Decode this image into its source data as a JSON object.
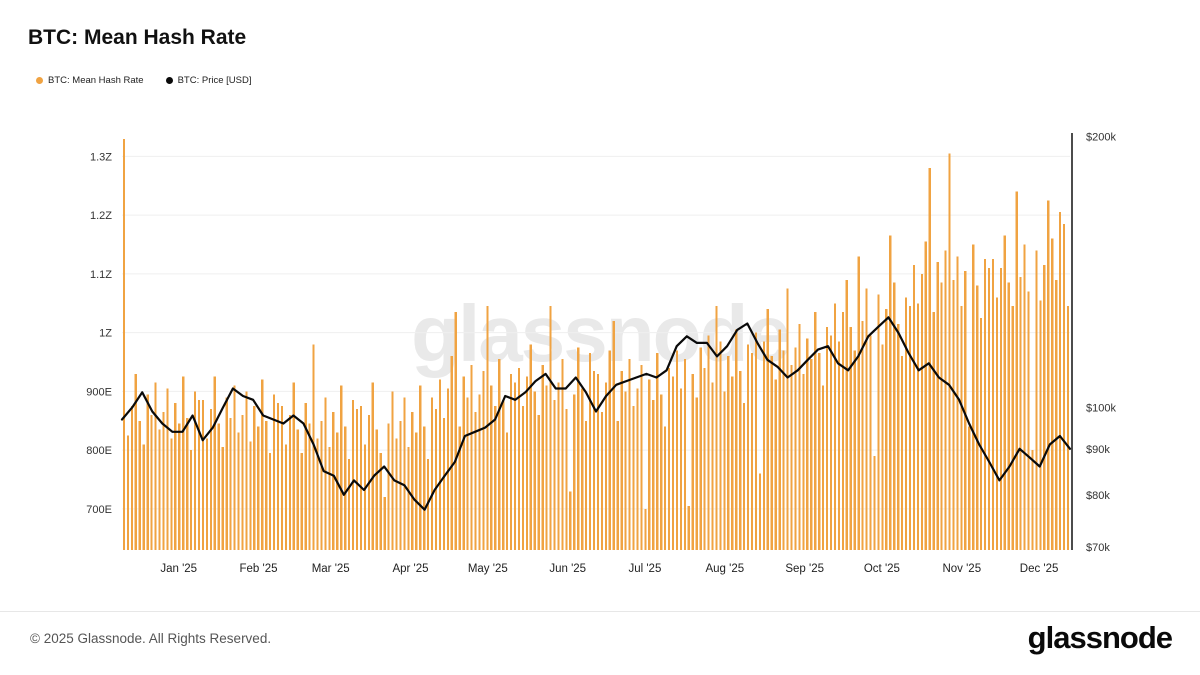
{
  "page": {
    "title": "BTC: Mean Hash Rate",
    "watermark": "glassnode",
    "footer_copyright": "© 2025 Glassnode. All Rights Reserved.",
    "footer_logo": "glassnode"
  },
  "legend": [
    {
      "label": "BTC: Mean Hash Rate",
      "color": "#f0a342"
    },
    {
      "label": "BTC: Price [USD]",
      "color": "#0a0a0a"
    }
  ],
  "chart_data": {
    "type": "bar+line",
    "title": "BTC: Mean Hash Rate",
    "x_start": "2024-12-10",
    "x_end": "2025-12-13",
    "x_tick_labels": [
      "Jan '25",
      "Feb '25",
      "Mar '25",
      "Apr '25",
      "May '25",
      "Jun '25",
      "Jul '25",
      "Aug '25",
      "Sep '25",
      "Oct '25",
      "Nov '25",
      "Dec '25"
    ],
    "left_axis": {
      "name": "Mean Hash Rate",
      "unit": "hashes/s",
      "scale": "linear",
      "ticks": [
        {
          "value": 700,
          "label": "700E"
        },
        {
          "value": 800,
          "label": "800E"
        },
        {
          "value": 900,
          "label": "900E"
        },
        {
          "value": 1000,
          "label": "1Z"
        },
        {
          "value": 1100,
          "label": "1.1Z"
        },
        {
          "value": 1200,
          "label": "1.2Z"
        },
        {
          "value": 1300,
          "label": "1.3Z"
        }
      ],
      "range": [
        630,
        1360
      ]
    },
    "right_axis": {
      "name": "Price",
      "unit": "USD",
      "scale": "log",
      "ticks": [
        {
          "value": 70,
          "label": "$70k"
        },
        {
          "value": 80,
          "label": "$80k"
        },
        {
          "value": 90,
          "label": "$90k"
        },
        {
          "value": 100,
          "label": "$100k"
        },
        {
          "value": 200,
          "label": "$200k"
        }
      ],
      "range": [
        70,
        205
      ]
    },
    "series": [
      {
        "name": "BTC: Mean Hash Rate",
        "type": "bar",
        "unit": "EH/s",
        "color": "#f0a342",
        "values": [
          1330,
          825,
          875,
          930,
          850,
          810,
          895,
          860,
          915,
          835,
          865,
          905,
          820,
          880,
          845,
          925,
          855,
          800,
          900,
          885,
          885,
          820,
          870,
          925,
          845,
          805,
          890,
          855,
          910,
          830,
          860,
          900,
          815,
          875,
          840,
          920,
          850,
          795,
          895,
          880,
          875,
          810,
          860,
          915,
          835,
          795,
          880,
          845,
          980,
          820,
          850,
          890,
          805,
          865,
          830,
          910,
          840,
          785,
          885,
          870,
          875,
          810,
          860,
          915,
          835,
          795,
          720,
          845,
          900,
          820,
          850,
          890,
          805,
          865,
          830,
          910,
          840,
          785,
          890,
          870,
          920,
          855,
          905,
          960,
          1035,
          840,
          925,
          890,
          945,
          865,
          895,
          935,
          1045,
          910,
          875,
          955,
          885,
          830,
          930,
          915,
          940,
          875,
          925,
          980,
          900,
          860,
          945,
          910,
          1045,
          885,
          915,
          955,
          870,
          730,
          895,
          975,
          905,
          850,
          965,
          935,
          930,
          865,
          915,
          970,
          1020,
          850,
          935,
          900,
          955,
          875,
          905,
          945,
          700,
          920,
          885,
          965,
          895,
          840,
          940,
          925,
          970,
          905,
          955,
          705,
          930,
          890,
          975,
          940,
          995,
          915,
          1045,
          985,
          900,
          960,
          925,
          1005,
          935,
          880,
          980,
          965,
          1000,
          760,
          985,
          1040,
          960,
          920,
          1005,
          970,
          1075,
          945,
          975,
          1015,
          930,
          990,
          955,
          1035,
          965,
          910,
          1010,
          995,
          1050,
          985,
          1035,
          1090,
          1010,
          970,
          1130,
          1020,
          1075,
          995,
          790,
          1065,
          980,
          1040,
          1165,
          1085,
          1015,
          960,
          1060,
          1045,
          1115,
          1050,
          1100,
          1155,
          1280,
          1035,
          1120,
          1085,
          1140,
          1305,
          1090,
          1130,
          1045,
          1105,
          840,
          1150,
          1080,
          1025,
          1125,
          1110,
          1125,
          1060,
          1110,
          1165,
          1085,
          1045,
          1240,
          1095,
          1150,
          1070,
          800,
          1140,
          1055,
          1115,
          1225,
          1160,
          1090,
          1205,
          1185,
          1045
        ]
      },
      {
        "name": "BTC: Price [USD]",
        "type": "line",
        "unit": "kUSD",
        "color": "#0a0a0a",
        "values": [
          97,
          100,
          104,
          99,
          96,
          94,
          94,
          98,
          92,
          95,
          100,
          105,
          103,
          102,
          98,
          97,
          96,
          98,
          96,
          91,
          85,
          84,
          80,
          83,
          81,
          84,
          86,
          83,
          82,
          79,
          77,
          81,
          84,
          87,
          93,
          94,
          95,
          97,
          103,
          102,
          104,
          107,
          109,
          105,
          105,
          108,
          104,
          99,
          103,
          106,
          107,
          108,
          109,
          108,
          110,
          117,
          120,
          118,
          118,
          114,
          117,
          122,
          124,
          118,
          113,
          111,
          108,
          110,
          113,
          116,
          117,
          112,
          110,
          114,
          120,
          123,
          126,
          121,
          115,
          110,
          112,
          108,
          106,
          102,
          96,
          91,
          87,
          83,
          86,
          90,
          88,
          86,
          91,
          93,
          90
        ]
      }
    ],
    "grid": "horizontal",
    "legend_position": "top-left"
  }
}
